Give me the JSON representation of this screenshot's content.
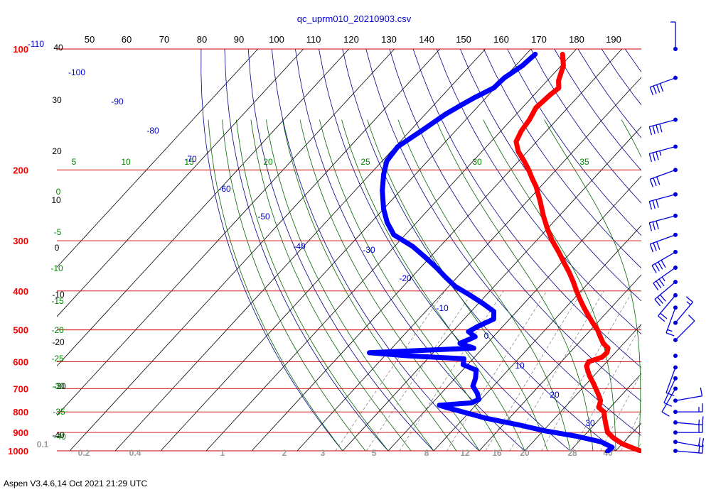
{
  "app": {
    "footer": "Aspen V3.4.6,14 Oct 2021  21:29 UTC"
  },
  "colors": {
    "temperature": "#ff0000",
    "dewpoint": "#0000ff",
    "isobar": "#cc0000",
    "isotherm": "#000000",
    "dry_adiabat": "#000088",
    "moist_adiabat": "#006600",
    "mixing_ratio": "#777777",
    "wind": "#0000dd"
  },
  "chart_data": {
    "type": "line",
    "subtype": "skew-T log-P diagram",
    "title": "qc_uprm010_20210903.csv",
    "xlabel": "",
    "ylabel": "",
    "pressure_ticks": [
      "100",
      "200",
      "300",
      "400",
      "500",
      "600",
      "700",
      "800",
      "900",
      "1000"
    ],
    "pressure_levels": [
      100,
      200,
      300,
      400,
      500,
      600,
      700,
      800,
      900,
      1000
    ],
    "top_ticks": [
      "-110",
      "50",
      "60",
      "70",
      "80",
      "90",
      "100",
      "110",
      "120",
      "130",
      "140",
      "150",
      "160",
      "170",
      "180",
      "190"
    ],
    "left_ticks": [
      "40",
      "30",
      "20",
      "10",
      "0",
      "-10",
      "-20",
      "-30",
      "-40"
    ],
    "isotherm_labels": [
      "-100",
      "-90",
      "-80",
      "-70",
      "-60",
      "-50",
      "-40",
      "-30",
      "-20",
      "-10",
      "0",
      "10",
      "20",
      "30"
    ],
    "moist_labels_top": [
      "5",
      "10",
      "15",
      "20",
      "25",
      "30",
      "35"
    ],
    "moist_labels_left": [
      "0",
      "-5",
      "-10",
      "-15",
      "-20",
      "-25",
      "-30",
      "-35",
      "-40"
    ],
    "mixing_ratio_labels": [
      "0.1",
      "0.2",
      "0.4",
      "1",
      "2",
      "3",
      "5",
      "8",
      "12",
      "16",
      "20",
      "28",
      "40"
    ],
    "grid": true,
    "series": [
      {
        "kind": "temperature",
        "points": [
          [
            103,
            -72.0
          ],
          [
            110,
            -69.5
          ],
          [
            120,
            -67.5
          ],
          [
            125,
            -66.0
          ],
          [
            130,
            -66.5
          ],
          [
            140,
            -67.0
          ],
          [
            150,
            -66.0
          ],
          [
            160,
            -65.5
          ],
          [
            170,
            -64.5
          ],
          [
            180,
            -62.0
          ],
          [
            190,
            -58.8
          ],
          [
            200,
            -56.0
          ],
          [
            210,
            -53.5
          ],
          [
            220,
            -51.0
          ],
          [
            240,
            -47.0
          ],
          [
            260,
            -43.5
          ],
          [
            280,
            -40.0
          ],
          [
            300,
            -36.5
          ],
          [
            320,
            -32.8
          ],
          [
            340,
            -29.5
          ],
          [
            360,
            -26.3
          ],
          [
            380,
            -23.5
          ],
          [
            400,
            -21.0
          ],
          [
            420,
            -18.5
          ],
          [
            440,
            -16.0
          ],
          [
            460,
            -13.5
          ],
          [
            480,
            -11.0
          ],
          [
            500,
            -8.5
          ],
          [
            520,
            -6.5
          ],
          [
            540,
            -4.5
          ],
          [
            555,
            -2.5
          ],
          [
            570,
            -1.8
          ],
          [
            585,
            -2.0
          ],
          [
            600,
            -4.0
          ],
          [
            615,
            -3.6
          ],
          [
            630,
            -2.5
          ],
          [
            650,
            -1.0
          ],
          [
            680,
            1.5
          ],
          [
            700,
            3.0
          ],
          [
            720,
            4.5
          ],
          [
            750,
            6.5
          ],
          [
            780,
            7.5
          ],
          [
            800,
            9.5
          ],
          [
            830,
            11.0
          ],
          [
            860,
            12.5
          ],
          [
            900,
            14.5
          ],
          [
            930,
            17.0
          ],
          [
            960,
            20.0
          ],
          [
            990,
            24.0
          ],
          [
            1004,
            26.0
          ]
        ]
      },
      {
        "kind": "dewpoint",
        "points": [
          [
            103,
            -78.0
          ],
          [
            110,
            -78.5
          ],
          [
            118,
            -80.0
          ],
          [
            125,
            -80.3
          ],
          [
            132,
            -82.5
          ],
          [
            138,
            -84.0
          ],
          [
            145,
            -85.5
          ],
          [
            160,
            -87.5
          ],
          [
            175,
            -89.5
          ],
          [
            190,
            -89.0
          ],
          [
            205,
            -87.0
          ],
          [
            225,
            -84.0
          ],
          [
            250,
            -80.0
          ],
          [
            270,
            -76.5
          ],
          [
            290,
            -72.5
          ],
          [
            310,
            -66.0
          ],
          [
            330,
            -61.0
          ],
          [
            350,
            -56.5
          ],
          [
            370,
            -52.5
          ],
          [
            390,
            -48.5
          ],
          [
            410,
            -43.5
          ],
          [
            430,
            -39.0
          ],
          [
            450,
            -35.0
          ],
          [
            470,
            -33.5
          ],
          [
            490,
            -35.5
          ],
          [
            505,
            -36.5
          ],
          [
            520,
            -34.0
          ],
          [
            540,
            -36.0
          ],
          [
            555,
            -32.0
          ],
          [
            570,
            -54.0
          ],
          [
            580,
            -45.0
          ],
          [
            590,
            -32.0
          ],
          [
            610,
            -31.0
          ],
          [
            630,
            -27.0
          ],
          [
            660,
            -25.5
          ],
          [
            690,
            -24.5
          ],
          [
            720,
            -22.0
          ],
          [
            745,
            -20.5
          ],
          [
            760,
            -21.5
          ],
          [
            770,
            -28.0
          ],
          [
            780,
            -26.0
          ],
          [
            800,
            -21.5
          ],
          [
            830,
            -15.0
          ],
          [
            860,
            -7.0
          ],
          [
            890,
            0.0
          ],
          [
            920,
            8.5
          ],
          [
            950,
            15.0
          ],
          [
            980,
            18.5
          ],
          [
            1004,
            18.3
          ]
        ]
      }
    ],
    "wind_barbs": [
      [
        100,
        5,
        0
      ],
      [
        118,
        40,
        250
      ],
      [
        150,
        40,
        255
      ],
      [
        175,
        35,
        255
      ],
      [
        200,
        30,
        250
      ],
      [
        230,
        30,
        255
      ],
      [
        260,
        30,
        255
      ],
      [
        290,
        30,
        250
      ],
      [
        320,
        40,
        240
      ],
      [
        350,
        35,
        235
      ],
      [
        380,
        30,
        230
      ],
      [
        410,
        20,
        220
      ],
      [
        440,
        15,
        200
      ],
      [
        480,
        15,
        40
      ],
      [
        530,
        10,
        45
      ],
      [
        580,
        0,
        0
      ],
      [
        620,
        10,
        200
      ],
      [
        660,
        10,
        205
      ],
      [
        700,
        10,
        210
      ],
      [
        750,
        10,
        80
      ],
      [
        800,
        15,
        90
      ],
      [
        850,
        15,
        95
      ],
      [
        900,
        20,
        90
      ],
      [
        950,
        20,
        100
      ],
      [
        1000,
        20,
        95
      ]
    ]
  }
}
